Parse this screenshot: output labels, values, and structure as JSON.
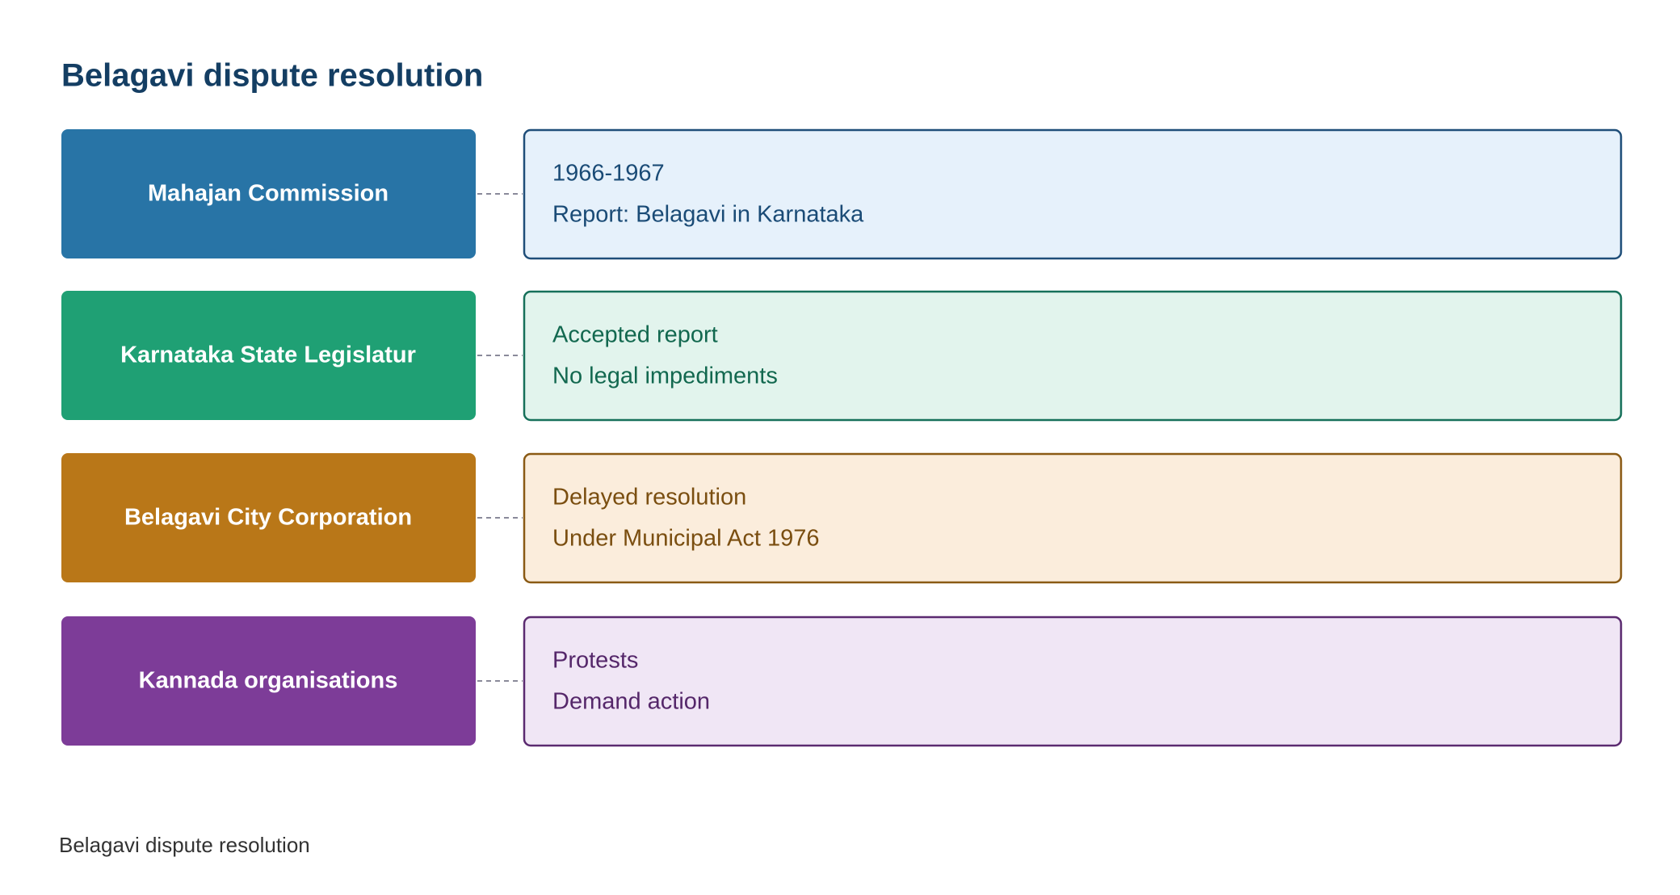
{
  "header": {
    "title": "Belagavi dispute resolution"
  },
  "rows": [
    {
      "label": "Mahajan Commission",
      "details": [
        "1966-1967",
        "Report: Belagavi in Karnataka"
      ]
    },
    {
      "label": "Karnataka State Legislatur",
      "details": [
        "Accepted report",
        "No legal impediments"
      ]
    },
    {
      "label": "Belagavi City Corporation",
      "details": [
        "Delayed resolution",
        "Under Municipal Act 1976"
      ]
    },
    {
      "label": "Kannada organisations",
      "details": [
        "Protests",
        "Demand action"
      ]
    }
  ],
  "footer": {
    "caption": "Belagavi dispute resolution"
  }
}
